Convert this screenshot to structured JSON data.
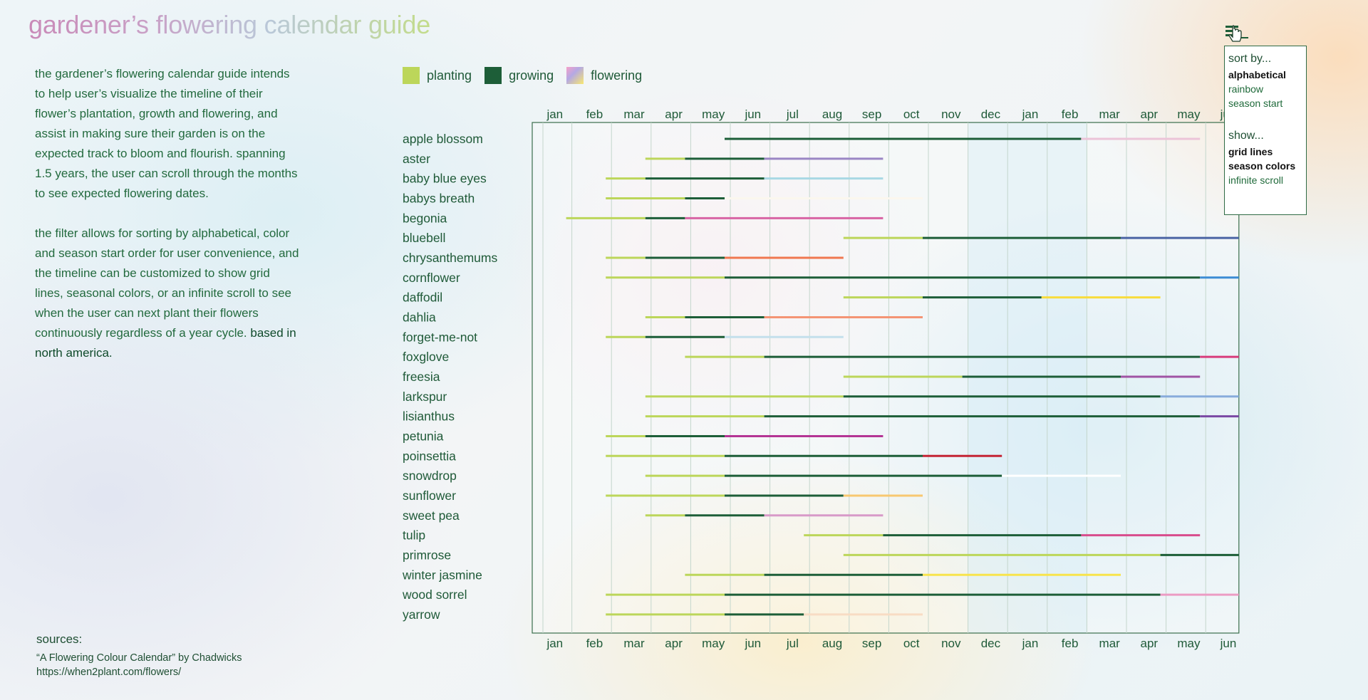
{
  "title": "gardener’s flowering calendar guide",
  "intro": {
    "p1": "the gardener’s flowering calendar guide intends to help user’s visualize the timeline of their flower’s plantation, growth and flowering, and assist in making sure their garden is on the expected track to bloom and flourish. spanning 1.5 years, the user can scroll through the months to see expected flowering dates.",
    "p2": "the filter allows for sorting by alphabetical, color and season start order for user convenience, and the timeline can be customized to show grid lines, seasonal colors, or an infinite scroll to see when the user can next plant their flowers continuously regardless of a year cycle.",
    "p2_emph": "based in north america."
  },
  "sources": {
    "label": "sources:",
    "s1": "“A Flowering Colour Calendar” by Chadwicks",
    "s2": "https://when2plant.com/flowers/"
  },
  "legend": {
    "planting": "planting",
    "growing": "growing",
    "flowering": "flowering",
    "planting_color": "#bcd65a",
    "growing_color": "#1d5e38"
  },
  "menu": {
    "icon": "menu-hamburger-icon",
    "cursor_icon": "hand-pointer-icon",
    "sort_label": "sort by...",
    "sort_options": [
      "alphabetical",
      "rainbow",
      "season start"
    ],
    "sort_selected": "alphabetical",
    "show_label": "show...",
    "show_options": [
      "grid lines",
      "season colors",
      "infinite scroll"
    ],
    "show_selected": [
      "grid lines",
      "season colors"
    ]
  },
  "chart_data": {
    "type": "timeline",
    "months": [
      "jan",
      "feb",
      "mar",
      "apr",
      "may",
      "jun",
      "jul",
      "aug",
      "sep",
      "oct",
      "nov",
      "dec",
      "jan",
      "feb",
      "mar",
      "apr",
      "may",
      "jun"
    ],
    "rows": [
      {
        "name": "apple blossom",
        "segments": [
          {
            "phase": "growing",
            "start": 5,
            "end": 14
          },
          {
            "phase": "flowering",
            "start": 14,
            "end": 17,
            "color": "#ecc4d8"
          }
        ]
      },
      {
        "name": "aster",
        "segments": [
          {
            "phase": "planting",
            "start": 3,
            "end": 4
          },
          {
            "phase": "growing",
            "start": 4,
            "end": 6
          },
          {
            "phase": "flowering",
            "start": 6,
            "end": 9,
            "color": "#9a86c4"
          }
        ]
      },
      {
        "name": "baby blue eyes",
        "segments": [
          {
            "phase": "planting",
            "start": 2,
            "end": 3
          },
          {
            "phase": "growing",
            "start": 3,
            "end": 6
          },
          {
            "phase": "flowering",
            "start": 6,
            "end": 9,
            "color": "#a8d8e4"
          }
        ]
      },
      {
        "name": "babys breath",
        "segments": [
          {
            "phase": "planting",
            "start": 2,
            "end": 4
          },
          {
            "phase": "growing",
            "start": 4,
            "end": 5
          },
          {
            "phase": "flowering",
            "start": 5,
            "end": 10,
            "color": "#fbf7ee"
          }
        ]
      },
      {
        "name": "begonia",
        "segments": [
          {
            "phase": "planting",
            "start": 1,
            "end": 3
          },
          {
            "phase": "growing",
            "start": 3,
            "end": 4
          },
          {
            "phase": "flowering",
            "start": 4,
            "end": 9,
            "color": "#d864a4"
          }
        ]
      },
      {
        "name": "bluebell",
        "segments": [
          {
            "phase": "planting",
            "start": 8,
            "end": 10
          },
          {
            "phase": "growing",
            "start": 10,
            "end": 15
          },
          {
            "phase": "flowering",
            "start": 15,
            "end": 18,
            "color": "#4a64a4"
          }
        ]
      },
      {
        "name": "chrysanthemums",
        "segments": [
          {
            "phase": "planting",
            "start": 2,
            "end": 3
          },
          {
            "phase": "growing",
            "start": 3,
            "end": 5
          },
          {
            "phase": "flowering",
            "start": 5,
            "end": 8,
            "color": "#f07850"
          }
        ]
      },
      {
        "name": "cornflower",
        "segments": [
          {
            "phase": "planting",
            "start": 2,
            "end": 5
          },
          {
            "phase": "growing",
            "start": 5,
            "end": 17
          },
          {
            "phase": "flowering",
            "start": 17,
            "end": 18,
            "color": "#3c8cd4"
          }
        ]
      },
      {
        "name": "daffodil",
        "segments": [
          {
            "phase": "planting",
            "start": 8,
            "end": 10
          },
          {
            "phase": "growing",
            "start": 10,
            "end": 13
          },
          {
            "phase": "flowering",
            "start": 13,
            "end": 16,
            "color": "#f8dc3c"
          }
        ]
      },
      {
        "name": "dahlia",
        "segments": [
          {
            "phase": "planting",
            "start": 3,
            "end": 4
          },
          {
            "phase": "growing",
            "start": 4,
            "end": 6
          },
          {
            "phase": "flowering",
            "start": 6,
            "end": 10,
            "color": "#f49474"
          }
        ]
      },
      {
        "name": "forget-me-not",
        "segments": [
          {
            "phase": "planting",
            "start": 2,
            "end": 3
          },
          {
            "phase": "growing",
            "start": 3,
            "end": 5
          },
          {
            "phase": "flowering",
            "start": 5,
            "end": 8,
            "color": "#c4e0ec"
          }
        ]
      },
      {
        "name": "foxglove",
        "segments": [
          {
            "phase": "planting",
            "start": 4,
            "end": 6
          },
          {
            "phase": "growing",
            "start": 6,
            "end": 17
          },
          {
            "phase": "flowering",
            "start": 17,
            "end": 18,
            "color": "#d83c7c"
          }
        ]
      },
      {
        "name": "freesia",
        "segments": [
          {
            "phase": "planting",
            "start": 8,
            "end": 11
          },
          {
            "phase": "growing",
            "start": 11,
            "end": 15
          },
          {
            "phase": "flowering",
            "start": 15,
            "end": 17,
            "color": "#a054a4"
          }
        ]
      },
      {
        "name": "larkspur",
        "segments": [
          {
            "phase": "planting",
            "start": 3,
            "end": 8
          },
          {
            "phase": "growing",
            "start": 8,
            "end": 16
          },
          {
            "phase": "flowering",
            "start": 16,
            "end": 18,
            "color": "#88acdc"
          }
        ]
      },
      {
        "name": "lisianthus",
        "segments": [
          {
            "phase": "planting",
            "start": 3,
            "end": 6
          },
          {
            "phase": "growing",
            "start": 6,
            "end": 17
          },
          {
            "phase": "flowering",
            "start": 17,
            "end": 18,
            "color": "#7a48a4"
          }
        ]
      },
      {
        "name": "petunia",
        "segments": [
          {
            "phase": "planting",
            "start": 2,
            "end": 3
          },
          {
            "phase": "growing",
            "start": 3,
            "end": 5
          },
          {
            "phase": "flowering",
            "start": 5,
            "end": 9,
            "color": "#b43494"
          }
        ]
      },
      {
        "name": "poinsettia",
        "segments": [
          {
            "phase": "planting",
            "start": 2,
            "end": 5
          },
          {
            "phase": "growing",
            "start": 5,
            "end": 10
          },
          {
            "phase": "flowering",
            "start": 10,
            "end": 12,
            "color": "#c42434"
          }
        ]
      },
      {
        "name": "snowdrop",
        "segments": [
          {
            "phase": "planting",
            "start": 3,
            "end": 5
          },
          {
            "phase": "growing",
            "start": 5,
            "end": 12
          },
          {
            "phase": "flowering",
            "start": 12,
            "end": 15,
            "color": "#ffffff"
          }
        ]
      },
      {
        "name": "sunflower",
        "segments": [
          {
            "phase": "planting",
            "start": 2,
            "end": 5
          },
          {
            "phase": "growing",
            "start": 5,
            "end": 8
          },
          {
            "phase": "flowering",
            "start": 8,
            "end": 10,
            "color": "#f8c870"
          }
        ]
      },
      {
        "name": "sweet pea",
        "segments": [
          {
            "phase": "planting",
            "start": 3,
            "end": 4
          },
          {
            "phase": "growing",
            "start": 4,
            "end": 6
          },
          {
            "phase": "flowering",
            "start": 6,
            "end": 9,
            "color": "#d89ac8"
          }
        ]
      },
      {
        "name": "tulip",
        "segments": [
          {
            "phase": "planting",
            "start": 7,
            "end": 9
          },
          {
            "phase": "growing",
            "start": 9,
            "end": 14
          },
          {
            "phase": "flowering",
            "start": 14,
            "end": 17,
            "color": "#d84c8c"
          }
        ]
      },
      {
        "name": "primrose",
        "segments": [
          {
            "phase": "planting",
            "start": 8,
            "end": 16
          },
          {
            "phase": "growing",
            "start": 16,
            "end": 18
          }
        ]
      },
      {
        "name": "winter jasmine",
        "segments": [
          {
            "phase": "planting",
            "start": 4,
            "end": 6
          },
          {
            "phase": "growing",
            "start": 6,
            "end": 10
          },
          {
            "phase": "flowering",
            "start": 10,
            "end": 15,
            "color": "#f8e44c"
          }
        ]
      },
      {
        "name": "wood sorrel",
        "segments": [
          {
            "phase": "planting",
            "start": 2,
            "end": 5
          },
          {
            "phase": "growing",
            "start": 5,
            "end": 16
          },
          {
            "phase": "flowering",
            "start": 16,
            "end": 18,
            "color": "#ec9cc4"
          }
        ]
      },
      {
        "name": "yarrow",
        "segments": [
          {
            "phase": "planting",
            "start": 2,
            "end": 5
          },
          {
            "phase": "growing",
            "start": 5,
            "end": 7
          },
          {
            "phase": "flowering",
            "start": 7,
            "end": 10,
            "color": "#f8dcc4"
          }
        ]
      }
    ],
    "grid": true,
    "season_colors": true,
    "legend_position": "top-left"
  }
}
